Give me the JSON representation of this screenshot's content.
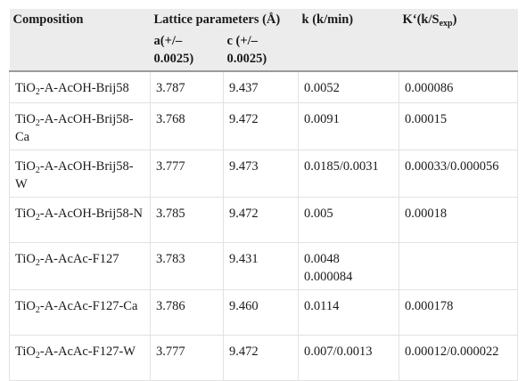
{
  "header": {
    "composition": "Composition",
    "lattice": "Lattice parameters (Å)",
    "k": "k (k/min)",
    "kprime": "K‘(k/S",
    "kprime_sub": "exp",
    "kprime_end": ")",
    "a": "a(+/– 0.0025)",
    "c": "c (+/– 0.0025)"
  },
  "rows": [
    {
      "pre": "TiO",
      "sub": "2",
      "post": "-A-AcOH-Brij58",
      "a": "3.787",
      "c": "9.437",
      "k": "0.0052",
      "kp": "0.000086"
    },
    {
      "pre": "TiO",
      "sub": "2",
      "post": "-A-AcOH-Brij58-Ca",
      "a": "3.768",
      "c": "9.472",
      "k": "0.0091",
      "kp": "0.00015"
    },
    {
      "pre": "TiO",
      "sub": "2",
      "post": "-A-AcOH-Brij58-W",
      "a": "3.777",
      "c": "9.473",
      "k": "0.0185/0.0031",
      "kp": "0.00033/0.000056"
    },
    {
      "pre": "TiO",
      "sub": "2",
      "post": "-A-AcOH-Brij58-N",
      "a": "3.785",
      "c": "9.472",
      "k": "0.005",
      "kp": "0.00018"
    },
    {
      "pre": "TiO",
      "sub": "2",
      "post": "-A-AcAc-F127",
      "a": "3.783",
      "c": "9.431",
      "k": "0.0048 0.000084",
      "kp": ""
    },
    {
      "pre": "TiO",
      "sub": "2",
      "post": "-A-AcAc-F127-Ca",
      "a": "3.786",
      "c": "9.460",
      "k": "0.0114",
      "kp": "0.000178"
    },
    {
      "pre": "TiO",
      "sub": "2",
      "post": "-A-AcAc-F127-W",
      "a": "3.777",
      "c": "9.472",
      "k": "0.007/0.0013",
      "kp": "0.00012/0.000022"
    }
  ]
}
